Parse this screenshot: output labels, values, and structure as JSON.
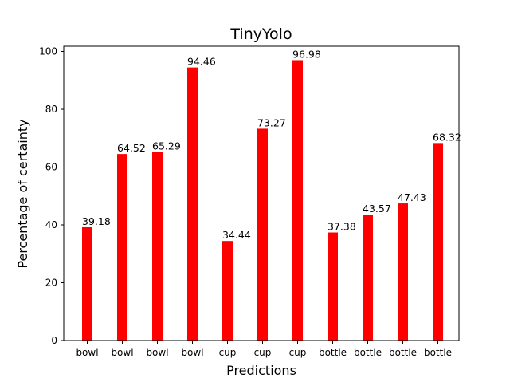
{
  "chart_data": {
    "type": "bar",
    "title": "TinyYolo",
    "xlabel": "Predictions",
    "ylabel": "Percentage of certainty",
    "categories": [
      "bowl",
      "bowl",
      "bowl",
      "bowl",
      "cup",
      "cup",
      "cup",
      "bottle",
      "bottle",
      "bottle",
      "bottle"
    ],
    "values": [
      39.18,
      64.52,
      65.29,
      94.46,
      34.44,
      73.27,
      96.98,
      37.38,
      43.57,
      47.43,
      68.32
    ],
    "value_labels": [
      "39.18",
      "64.52",
      "65.29",
      "94.46",
      "34.44",
      "73.27",
      "96.98",
      "37.38",
      "43.57",
      "47.43",
      "68.32"
    ],
    "yticks": [
      0,
      20,
      40,
      60,
      80,
      100
    ],
    "ylim": [
      0,
      101.8
    ],
    "grid": false,
    "bar_color": "#ff0000"
  }
}
